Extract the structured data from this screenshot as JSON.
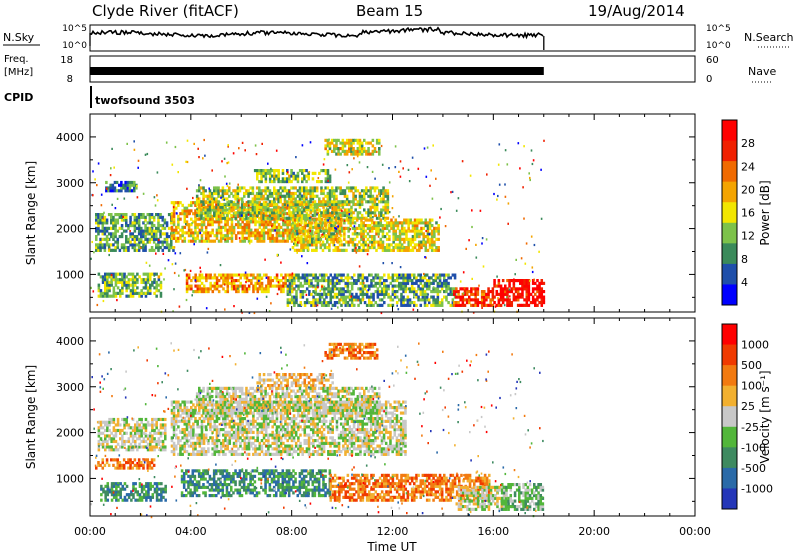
{
  "header": {
    "station": "Clyde River (fitACF)",
    "beam": "Beam 15",
    "date": "19/Aug/2014"
  },
  "top_panels": {
    "nsky_label": "N.Sky",
    "nsearch_label": "N.Search",
    "freq_label": "Freq.",
    "freq_unit": "[MHz]",
    "nave_label": "Nave",
    "cpid_label": "CPID",
    "cpid_value": "twofsound 3503",
    "noise_ticks": [
      "10^5",
      "10^0"
    ],
    "freq_ticks": [
      "18",
      "8"
    ],
    "nave_ticks": [
      "60",
      "0"
    ]
  },
  "colors": {
    "power_scale": [
      "#0000ff",
      "#1f4faa",
      "#3a8a5a",
      "#7dc24a",
      "#f2e600",
      "#f4a400",
      "#f06a00",
      "#f02000",
      "#ff0000"
    ],
    "velocity_scale": [
      "#2436b8",
      "#2a6aa8",
      "#3e8a60",
      "#52b63a",
      "#c8c8c8",
      "#f2b030",
      "#f27a10",
      "#f03a00",
      "#ff0000"
    ]
  },
  "chart_data": [
    {
      "type": "heatmap",
      "title": "Power",
      "xlabel": "Time UT",
      "ylabel": "Slant Range [km]",
      "x_ticks": [
        "00:00",
        "04:00",
        "08:00",
        "12:00",
        "16:00",
        "20:00",
        "00:00"
      ],
      "y_ticks": [
        1000,
        2000,
        3000,
        4000
      ],
      "xlim": [
        0,
        24
      ],
      "ylim": [
        180,
        4500
      ],
      "colorbar": {
        "label": "Power [dB]",
        "ticks": [
          4,
          8,
          12,
          16,
          20,
          24,
          28
        ],
        "range": [
          0,
          32
        ]
      },
      "data_extent_hours": [
        0,
        18
      ],
      "regions": [
        {
          "t0": 0.2,
          "t1": 3.3,
          "r0": 1500,
          "r1": 2300,
          "level": 10
        },
        {
          "t0": 0.3,
          "t1": 2.8,
          "r0": 500,
          "r1": 1000,
          "level": 12
        },
        {
          "t0": 0.6,
          "t1": 1.8,
          "r0": 2800,
          "r1": 3000,
          "level": 8
        },
        {
          "t0": 3.2,
          "t1": 10.0,
          "r0": 1700,
          "r1": 2600,
          "level": 18
        },
        {
          "t0": 3.8,
          "t1": 8.0,
          "r0": 600,
          "r1": 1000,
          "level": 20
        },
        {
          "t0": 4.2,
          "t1": 11.8,
          "r0": 2200,
          "r1": 2900,
          "level": 14
        },
        {
          "t0": 6.5,
          "t1": 9.5,
          "r0": 3000,
          "r1": 3300,
          "level": 12
        },
        {
          "t0": 9.3,
          "t1": 11.5,
          "r0": 3600,
          "r1": 3950,
          "level": 16
        },
        {
          "t0": 8.0,
          "t1": 13.8,
          "r0": 1500,
          "r1": 2200,
          "level": 16
        },
        {
          "t0": 7.8,
          "t1": 14.5,
          "r0": 300,
          "r1": 1000,
          "level": 10
        },
        {
          "t0": 14.4,
          "t1": 16.0,
          "r0": 300,
          "r1": 700,
          "level": 26
        },
        {
          "t0": 16.0,
          "t1": 18.0,
          "r0": 300,
          "r1": 900,
          "level": 30
        }
      ]
    },
    {
      "type": "heatmap",
      "title": "Velocity",
      "xlabel": "Time UT",
      "ylabel": "Slant Range [km]",
      "x_ticks": [
        "00:00",
        "04:00",
        "08:00",
        "12:00",
        "16:00",
        "20:00",
        "00:00"
      ],
      "y_ticks": [
        1000,
        2000,
        3000,
        4000
      ],
      "xlim": [
        0,
        24
      ],
      "ylim": [
        180,
        4500
      ],
      "colorbar": {
        "label": "Velocity [m s⁻¹]",
        "ticks": [
          1000,
          500,
          100,
          25,
          -25,
          -100,
          -500,
          -1000
        ]
      },
      "regions": [
        {
          "t0": 0.3,
          "t1": 3.0,
          "r0": 1600,
          "r1": 2300,
          "level": 4
        },
        {
          "t0": 3.2,
          "t1": 12.5,
          "r0": 1500,
          "r1": 2700,
          "level": 4
        },
        {
          "t0": 0.2,
          "t1": 2.5,
          "r0": 1200,
          "r1": 1400,
          "level": 6
        },
        {
          "t0": 0.4,
          "t1": 3.0,
          "r0": 500,
          "r1": 900,
          "level": 2
        },
        {
          "t0": 3.6,
          "t1": 9.5,
          "r0": 600,
          "r1": 1200,
          "level": 2
        },
        {
          "t0": 6.6,
          "t1": 9.6,
          "r0": 3000,
          "r1": 3300,
          "level": 5
        },
        {
          "t0": 9.3,
          "t1": 11.4,
          "r0": 3600,
          "r1": 3950,
          "level": 6
        },
        {
          "t0": 4.2,
          "t1": 11.5,
          "r0": 2400,
          "r1": 3000,
          "level": 4
        },
        {
          "t0": 9.5,
          "t1": 15.8,
          "r0": 500,
          "r1": 1100,
          "level": 6
        },
        {
          "t0": 14.5,
          "t1": 16.5,
          "r0": 300,
          "r1": 800,
          "level": 4
        },
        {
          "t0": 16.3,
          "t1": 18.0,
          "r0": 300,
          "r1": 850,
          "level": 3
        }
      ]
    }
  ]
}
